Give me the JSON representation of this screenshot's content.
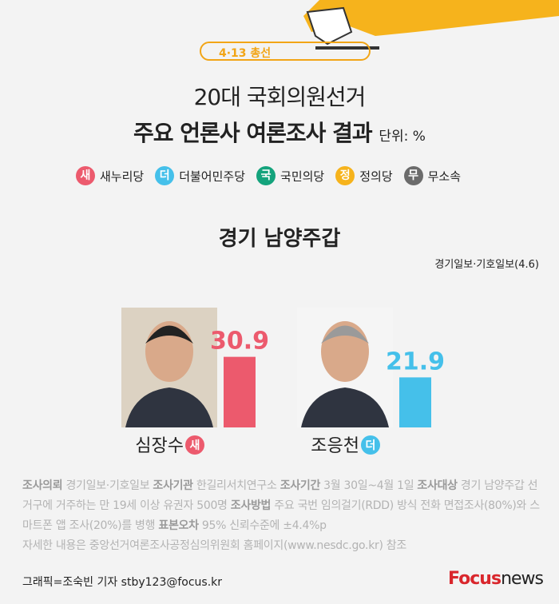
{
  "header": {
    "tag": "4·13 총선",
    "title_lines": [
      "20대 국회의원선거",
      "주요 언론사 여론조사 결과"
    ],
    "unit": "단위: %"
  },
  "legend": [
    {
      "mark": "새",
      "name": "새누리당",
      "color": "#ec5a6d"
    },
    {
      "mark": "더",
      "name": "더불어민주당",
      "color": "#45c0ea"
    },
    {
      "mark": "국",
      "name": "국민의당",
      "color": "#14a37c"
    },
    {
      "mark": "정",
      "name": "정의당",
      "color": "#f6b31c"
    },
    {
      "mark": "무",
      "name": "무소속",
      "color": "#6b6b6b"
    }
  ],
  "chart_data": {
    "type": "bar",
    "title": "경기 남양주갑",
    "source": "경기일보·기호일보(4.6)",
    "categories": [
      "심장수",
      "조응천"
    ],
    "party_marks": [
      "새",
      "더"
    ],
    "colors": [
      "#ec5a6d",
      "#45c0ea"
    ],
    "values": [
      30.9,
      21.9
    ]
  },
  "notes": [
    [
      {
        "text": "조사의뢰",
        "bold": true
      },
      {
        "text": " 경기일보·기호일보 "
      },
      {
        "text": "조사기관",
        "bold": true
      },
      {
        "text": " 한길리서치연구소 "
      },
      {
        "text": "조사기간",
        "bold": true
      },
      {
        "text": " 3월 30일~4월 1일 "
      },
      {
        "text": "조사대상",
        "bold": true
      },
      {
        "text": " 경기 남양주갑 선거구에 거주하는 만 19세 이상 유권자 500명 "
      },
      {
        "text": "조사방법",
        "bold": true
      },
      {
        "text": " 주요 국번 임의걸기(RDD) 방식 전화 면접조사(80%)와 스마트폰 앱 조사(20%)를 병행 "
      },
      {
        "text": "표본오차",
        "bold": true
      },
      {
        "text": " 95% 신뢰수준에 ±4.4%p"
      }
    ],
    [
      {
        "text": "자세한 내용은 중앙선거여론조사공정심의위원회 홈페이지(www.nesdc.go.kr) 참조"
      }
    ]
  ],
  "footer": {
    "credit": "그래픽=조숙빈 기자 stby123@focus.kr",
    "brand": "Focus",
    "brand_suffix": "news"
  }
}
